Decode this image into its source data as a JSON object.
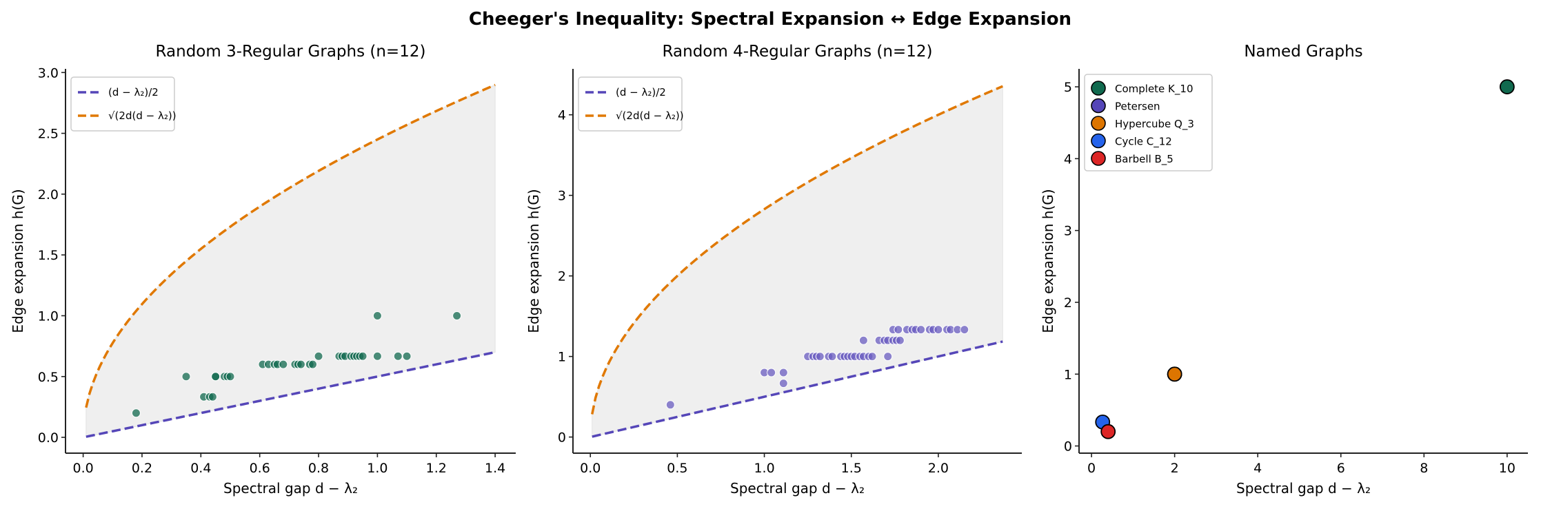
{
  "title": "Cheeger's Inequality: Spectral Expansion ↔ Edge Expansion",
  "colors": {
    "lower_bound": "#5546b8",
    "upper_bound": "#e07800",
    "fill": "#d9d9d9",
    "deg3": "#116a4f",
    "deg4": "#6a5cc0"
  },
  "chart_data": [
    {
      "type": "scatter",
      "title": "Random 3-Regular Graphs (n=12)",
      "xlabel": "Spectral gap d − λ₂",
      "ylabel": "Edge expansion h(G)",
      "d": 3,
      "xlim": [
        -0.06,
        1.47
      ],
      "ylim": [
        -0.13,
        3.03
      ],
      "xticks": [
        "0.0",
        "0.2",
        "0.4",
        "0.6",
        "0.8",
        "1.0",
        "1.2",
        "1.4"
      ],
      "yticks": [
        "0.0",
        "0.5",
        "1.0",
        "1.5",
        "2.0",
        "2.5",
        "3.0"
      ],
      "legend": {
        "position": "top-left",
        "entries": [
          "(d − λ₂)/2",
          "√(2d(d − λ₂))"
        ]
      },
      "bound_range": [
        0.01,
        1.4
      ],
      "points": [
        [
          0.18,
          0.2
        ],
        [
          0.35,
          0.5
        ],
        [
          0.41,
          0.333
        ],
        [
          0.43,
          0.333
        ],
        [
          0.44,
          0.333
        ],
        [
          0.45,
          0.5
        ],
        [
          0.45,
          0.5
        ],
        [
          0.48,
          0.5
        ],
        [
          0.49,
          0.5
        ],
        [
          0.5,
          0.5
        ],
        [
          0.61,
          0.6
        ],
        [
          0.63,
          0.6
        ],
        [
          0.65,
          0.6
        ],
        [
          0.66,
          0.6
        ],
        [
          0.68,
          0.6
        ],
        [
          0.72,
          0.6
        ],
        [
          0.73,
          0.6
        ],
        [
          0.74,
          0.6
        ],
        [
          0.77,
          0.6
        ],
        [
          0.78,
          0.6
        ],
        [
          0.8,
          0.667
        ],
        [
          0.87,
          0.667
        ],
        [
          0.88,
          0.667
        ],
        [
          0.89,
          0.667
        ],
        [
          0.91,
          0.667
        ],
        [
          0.92,
          0.667
        ],
        [
          0.93,
          0.667
        ],
        [
          0.94,
          0.667
        ],
        [
          0.95,
          0.667
        ],
        [
          1.0,
          0.667
        ],
        [
          1.07,
          0.667
        ],
        [
          1.1,
          0.667
        ],
        [
          1.0,
          1.0
        ],
        [
          1.27,
          1.0
        ]
      ]
    },
    {
      "type": "scatter",
      "title": "Random 4-Regular Graphs (n=12)",
      "xlabel": "Spectral gap d − λ₂",
      "ylabel": "Edge expansion h(G)",
      "d": 4,
      "xlim": [
        -0.1,
        2.48
      ],
      "ylim": [
        -0.2,
        4.57
      ],
      "xticks": [
        "0.0",
        "0.5",
        "1.0",
        "1.5",
        "2.0"
      ],
      "yticks": [
        "0",
        "1",
        "2",
        "3",
        "4"
      ],
      "legend": {
        "position": "top-left",
        "entries": [
          "(d − λ₂)/2",
          "√(2d(d − λ₂))"
        ]
      },
      "bound_range": [
        0.01,
        2.37
      ],
      "points": [
        [
          0.46,
          0.4
        ],
        [
          1.0,
          0.8
        ],
        [
          1.04,
          0.8
        ],
        [
          1.11,
          0.8
        ],
        [
          1.11,
          0.667
        ],
        [
          1.25,
          1.0
        ],
        [
          1.28,
          1.0
        ],
        [
          1.3,
          1.0
        ],
        [
          1.32,
          1.0
        ],
        [
          1.37,
          1.0
        ],
        [
          1.39,
          1.0
        ],
        [
          1.44,
          1.0
        ],
        [
          1.46,
          1.0
        ],
        [
          1.48,
          1.0
        ],
        [
          1.5,
          1.0
        ],
        [
          1.52,
          1.0
        ],
        [
          1.55,
          1.0
        ],
        [
          1.57,
          1.0
        ],
        [
          1.6,
          1.0
        ],
        [
          1.62,
          1.0
        ],
        [
          1.71,
          1.0
        ],
        [
          1.57,
          1.2
        ],
        [
          1.66,
          1.2
        ],
        [
          1.69,
          1.2
        ],
        [
          1.71,
          1.2
        ],
        [
          1.74,
          1.2
        ],
        [
          1.76,
          1.2
        ],
        [
          1.78,
          1.2
        ],
        [
          1.74,
          1.333
        ],
        [
          1.77,
          1.333
        ],
        [
          1.82,
          1.333
        ],
        [
          1.85,
          1.333
        ],
        [
          1.87,
          1.333
        ],
        [
          1.9,
          1.333
        ],
        [
          1.95,
          1.333
        ],
        [
          1.97,
          1.333
        ],
        [
          2.0,
          1.333
        ],
        [
          2.05,
          1.333
        ],
        [
          2.07,
          1.333
        ],
        [
          2.11,
          1.333
        ],
        [
          2.15,
          1.333
        ]
      ]
    },
    {
      "type": "scatter",
      "title": "Named Graphs",
      "xlabel": "Spectral gap d − λ₂",
      "ylabel": "Edge expansion h(G)",
      "xlim": [
        -0.3,
        10.5
      ],
      "ylim": [
        -0.1,
        5.25
      ],
      "xticks": [
        "0",
        "2",
        "4",
        "6",
        "8",
        "10"
      ],
      "yticks": [
        "0",
        "1",
        "2",
        "3",
        "4",
        "5"
      ],
      "legend": {
        "position": "top-left"
      },
      "series": [
        {
          "name": "Complete K_10",
          "x": 10,
          "y": 5,
          "color": "#116a4f"
        },
        {
          "name": "Petersen",
          "x": 2,
          "y": 1,
          "color": "#5546b8"
        },
        {
          "name": "Hypercube Q_3",
          "x": 2,
          "y": 1,
          "color": "#dd7500"
        },
        {
          "name": "Cycle C_12",
          "x": 0.268,
          "y": 0.333,
          "color": "#2563eb"
        },
        {
          "name": "Barbell B_5",
          "x": 0.4,
          "y": 0.2,
          "color": "#dc2626"
        }
      ]
    }
  ]
}
